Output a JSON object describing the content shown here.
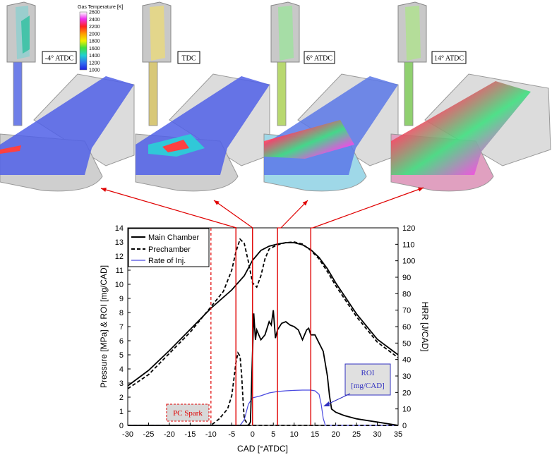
{
  "colorbar": {
    "title": "Gas Temperature [K]",
    "ticks": [
      "2600",
      "2400",
      "2200",
      "2000",
      "1800",
      "1600",
      "1400",
      "1200",
      "1000"
    ]
  },
  "snapshots": [
    {
      "label": "-4° ATDC",
      "cad": -4
    },
    {
      "label": "TDC",
      "cad": 0
    },
    {
      "label": "6° ATDC",
      "cad": 6
    },
    {
      "label": "14° ATDC",
      "cad": 14
    }
  ],
  "colors": {
    "main": "#000000",
    "pre": "#000000",
    "roi": "#4a4ae0",
    "marker": "#e00000",
    "plate": "#4f5fe6",
    "metal": "#c8c8c8"
  },
  "chart_data": {
    "type": "line",
    "xlabel": "CAD [°ATDC]",
    "ylabel": "Pressure [MPa] & ROI [mg/CAD]",
    "y2label": "HRR [J/CAD]",
    "xlim": [
      -30,
      35
    ],
    "ylim": [
      0,
      14
    ],
    "y2lim": [
      0,
      120
    ],
    "xticks": [
      "-30",
      "-25",
      "-20",
      "-15",
      "-10",
      "-5",
      "0",
      "5",
      "10",
      "15",
      "20",
      "25",
      "30",
      "35"
    ],
    "yticks": [
      "0",
      "1",
      "2",
      "3",
      "4",
      "5",
      "6",
      "7",
      "8",
      "9",
      "10",
      "11",
      "12",
      "13",
      "14"
    ],
    "y2ticks": [
      "0",
      "10",
      "20",
      "30",
      "40",
      "50",
      "60",
      "70",
      "80",
      "90",
      "100",
      "110",
      "120"
    ],
    "legend": [
      "Main Chamber",
      "Prechamber",
      "Rate of Inj."
    ],
    "legend_position": "top-left",
    "pressure_main": {
      "x": [
        -30,
        -25,
        -20,
        -15,
        -10,
        -5,
        -2,
        0,
        2,
        4,
        6,
        8,
        10,
        12,
        14,
        16,
        18,
        20,
        25,
        30,
        35
      ],
      "y": [
        2.8,
        3.9,
        5.3,
        6.8,
        8.3,
        9.6,
        10.6,
        11.7,
        12.4,
        12.7,
        12.85,
        12.95,
        12.95,
        12.8,
        12.45,
        11.9,
        11.1,
        10.1,
        7.9,
        6.1,
        5.0
      ]
    },
    "pressure_pre": {
      "x": [
        -30,
        -25,
        -20,
        -15,
        -10,
        -7,
        -5,
        -4,
        -3,
        -2,
        -1,
        0,
        1,
        2,
        3,
        4,
        6,
        8,
        10,
        12,
        14,
        16,
        18,
        20,
        25,
        30,
        35
      ],
      "y": [
        2.6,
        3.6,
        5.1,
        6.6,
        8.4,
        9.5,
        11.0,
        12.3,
        13.2,
        12.9,
        11.6,
        10.1,
        9.8,
        10.6,
        11.8,
        12.5,
        12.8,
        12.95,
        13.0,
        12.85,
        12.4,
        11.8,
        10.9,
        9.9,
        7.7,
        5.9,
        4.8
      ]
    },
    "hrr_main": {
      "x": [
        -30,
        -2,
        -1,
        -0.5,
        0,
        0.3,
        0.7,
        1,
        1.5,
        2,
        3,
        4,
        4.5,
        5,
        5.5,
        6,
        7,
        8,
        9,
        10,
        11,
        12,
        13,
        13.5,
        14,
        15,
        16,
        17,
        18,
        18.5,
        19,
        20,
        22,
        25,
        30,
        35
      ],
      "y": [
        0,
        0,
        0,
        2,
        45,
        68,
        52,
        58,
        55,
        52,
        55,
        63,
        61,
        70,
        53,
        58,
        62,
        63,
        61,
        60,
        58,
        52,
        58,
        59,
        55,
        55,
        50,
        45,
        30,
        18,
        10,
        8,
        6,
        4,
        2,
        0
      ]
    },
    "hrr_pre": {
      "x": [
        -30,
        -10,
        -8,
        -6,
        -5,
        -4.5,
        -4,
        -3.5,
        -3,
        -2.6,
        -2.3,
        -2,
        -1,
        0,
        35
      ],
      "y": [
        0,
        0,
        4,
        10,
        18,
        28,
        38,
        44,
        42,
        30,
        16,
        4,
        0,
        0,
        0
      ]
    },
    "roi": {
      "x": [
        -30,
        -3,
        -2,
        -1,
        0,
        2,
        4,
        6,
        8,
        10,
        12,
        14,
        15,
        16,
        16.5,
        17,
        17.5,
        35
      ],
      "y": [
        0,
        0,
        0.4,
        1.5,
        1.95,
        2.1,
        2.3,
        2.4,
        2.45,
        2.48,
        2.5,
        2.5,
        2.45,
        2.2,
        1.5,
        0.5,
        0,
        0
      ]
    },
    "annotations": {
      "pc_spark": {
        "label": "PC Spark",
        "cad": -10
      },
      "roi_box": {
        "label_line1": "ROI",
        "label_line2": "[mg/CAD]"
      }
    }
  }
}
